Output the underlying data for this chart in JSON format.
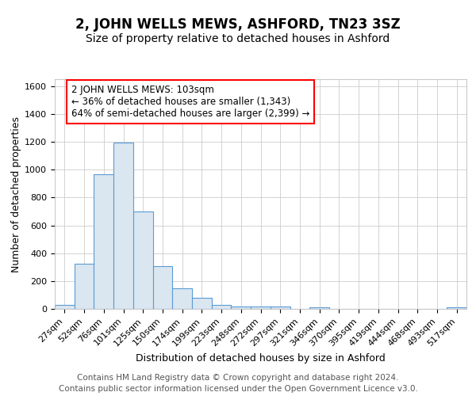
{
  "title": "2, JOHN WELLS MEWS, ASHFORD, TN23 3SZ",
  "subtitle": "Size of property relative to detached houses in Ashford",
  "xlabel": "Distribution of detached houses by size in Ashford",
  "ylabel": "Number of detached properties",
  "categories": [
    "27sqm",
    "52sqm",
    "76sqm",
    "101sqm",
    "125sqm",
    "150sqm",
    "174sqm",
    "199sqm",
    "223sqm",
    "248sqm",
    "272sqm",
    "297sqm",
    "321sqm",
    "346sqm",
    "370sqm",
    "395sqm",
    "419sqm",
    "444sqm",
    "468sqm",
    "493sqm",
    "517sqm"
  ],
  "values": [
    30,
    325,
    970,
    1195,
    700,
    310,
    150,
    78,
    28,
    18,
    15,
    15,
    0,
    12,
    0,
    0,
    0,
    0,
    0,
    0,
    12
  ],
  "bar_color": "#dae6f0",
  "bar_edge_color": "#5b9bd5",
  "annotation_text": "2 JOHN WELLS MEWS: 103sqm\n← 36% of detached houses are smaller (1,343)\n64% of semi-detached houses are larger (2,399) →",
  "annotation_box_facecolor": "white",
  "annotation_box_edge": "red",
  "ylim": [
    0,
    1650
  ],
  "yticks": [
    0,
    200,
    400,
    600,
    800,
    1000,
    1200,
    1400,
    1600
  ],
  "footer_line1": "Contains HM Land Registry data © Crown copyright and database right 2024.",
  "footer_line2": "Contains public sector information licensed under the Open Government Licence v3.0.",
  "bg_color": "#ffffff",
  "plot_bg_color": "#ffffff",
  "grid_color": "#cccccc",
  "title_fontsize": 12,
  "subtitle_fontsize": 10,
  "axis_label_fontsize": 9,
  "tick_fontsize": 8,
  "annotation_fontsize": 8.5,
  "footer_fontsize": 7.5
}
